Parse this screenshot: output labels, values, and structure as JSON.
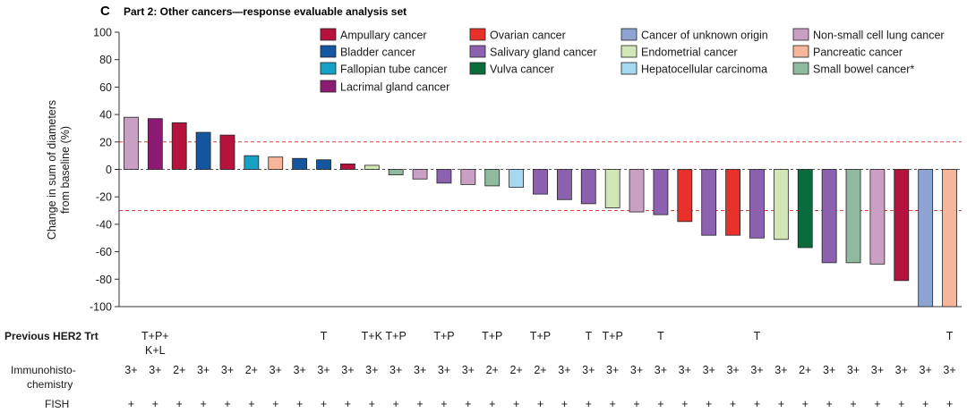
{
  "panel": {
    "letter": "C",
    "title": "Part 2: Other cancers—response evaluable analysis set"
  },
  "chart_data": {
    "type": "bar",
    "ylabel_lines": [
      "Change in sum of diameters",
      "from baseline (%)"
    ],
    "ylim": [
      -100,
      100
    ],
    "yticks": [
      100,
      80,
      60,
      40,
      20,
      0,
      -20,
      -40,
      -60,
      -80,
      -100
    ],
    "reference_lines": [
      20,
      -30
    ],
    "legend_position": "top-right",
    "cancers": [
      {
        "name": "Ampullary cancer",
        "color": "#b5123d"
      },
      {
        "name": "Ovarian cancer",
        "color": "#e8312a"
      },
      {
        "name": "Cancer of unknown origin",
        "color": "#8ea4d2"
      },
      {
        "name": "Non-small cell lung cancer",
        "color": "#c9a0c3"
      },
      {
        "name": "Bladder cancer",
        "color": "#1456a0"
      },
      {
        "name": "Salivary gland cancer",
        "color": "#8c62b0"
      },
      {
        "name": "Endometrial cancer",
        "color": "#d3e6b5"
      },
      {
        "name": "Pancreatic cancer",
        "color": "#f7b59a"
      },
      {
        "name": "Fallopian tube cancer",
        "color": "#16a0c5"
      },
      {
        "name": "Vulva cancer",
        "color": "#0a6b3c"
      },
      {
        "name": "Hepatocellular carcinoma",
        "color": "#a5d9ef"
      },
      {
        "name": "Small bowel cancer*",
        "color": "#8fba9f"
      },
      {
        "name": "Lacrimal gland cancer",
        "color": "#8c1a73"
      }
    ],
    "bars": [
      {
        "value": 38,
        "cancer": "Non-small cell lung cancer",
        "trt": "",
        "ihc": "3+",
        "fish": "+"
      },
      {
        "value": 37,
        "cancer": "Lacrimal gland cancer",
        "trt": "T+P+\nK+L",
        "ihc": "3+",
        "fish": "+"
      },
      {
        "value": 34,
        "cancer": "Ampullary cancer",
        "trt": "",
        "ihc": "2+",
        "fish": "+"
      },
      {
        "value": 27,
        "cancer": "Bladder cancer",
        "trt": "",
        "ihc": "3+",
        "fish": "+"
      },
      {
        "value": 25,
        "cancer": "Ampullary cancer",
        "trt": "",
        "ihc": "3+",
        "fish": "+"
      },
      {
        "value": 10,
        "cancer": "Fallopian tube cancer",
        "trt": "",
        "ihc": "2+",
        "fish": "+"
      },
      {
        "value": 9,
        "cancer": "Pancreatic cancer",
        "trt": "",
        "ihc": "3+",
        "fish": "+"
      },
      {
        "value": 8,
        "cancer": "Bladder cancer",
        "trt": "",
        "ihc": "3+",
        "fish": "+"
      },
      {
        "value": 7,
        "cancer": "Bladder cancer",
        "trt": "T",
        "ihc": "3+",
        "fish": "+"
      },
      {
        "value": 4,
        "cancer": "Ampullary cancer",
        "trt": "",
        "ihc": "3+",
        "fish": "+"
      },
      {
        "value": 3,
        "cancer": "Endometrial cancer",
        "trt": "T+K",
        "ihc": "3+",
        "fish": "+"
      },
      {
        "value": -4,
        "cancer": "Small bowel cancer*",
        "trt": "T+P",
        "ihc": "3+",
        "fish": "+"
      },
      {
        "value": -7,
        "cancer": "Non-small cell lung cancer",
        "trt": "",
        "ihc": "3+",
        "fish": "+"
      },
      {
        "value": -10,
        "cancer": "Salivary gland cancer",
        "trt": "T+P",
        "ihc": "3+",
        "fish": "+"
      },
      {
        "value": -11,
        "cancer": "Non-small cell lung cancer",
        "trt": "",
        "ihc": "3+",
        "fish": "+"
      },
      {
        "value": -12,
        "cancer": "Small bowel cancer*",
        "trt": "T+P",
        "ihc": "2+",
        "fish": "+"
      },
      {
        "value": -13,
        "cancer": "Hepatocellular carcinoma",
        "trt": "",
        "ihc": "2+",
        "fish": "+"
      },
      {
        "value": -18,
        "cancer": "Salivary gland cancer",
        "trt": "T+P",
        "ihc": "2+",
        "fish": "+"
      },
      {
        "value": -22,
        "cancer": "Salivary gland cancer",
        "trt": "",
        "ihc": "3+",
        "fish": "+"
      },
      {
        "value": -25,
        "cancer": "Salivary gland cancer",
        "trt": "T",
        "ihc": "3+",
        "fish": "+"
      },
      {
        "value": -28,
        "cancer": "Endometrial cancer",
        "trt": "T+P",
        "ihc": "3+",
        "fish": "+"
      },
      {
        "value": -31,
        "cancer": "Non-small cell lung cancer",
        "trt": "",
        "ihc": "3+",
        "fish": "+"
      },
      {
        "value": -33,
        "cancer": "Salivary gland cancer",
        "trt": "T",
        "ihc": "3+",
        "fish": "+"
      },
      {
        "value": -38,
        "cancer": "Ovarian cancer",
        "trt": "",
        "ihc": "3+",
        "fish": "+"
      },
      {
        "value": -48,
        "cancer": "Salivary gland cancer",
        "trt": "",
        "ihc": "3+",
        "fish": "+"
      },
      {
        "value": -48,
        "cancer": "Ovarian cancer",
        "trt": "",
        "ihc": "3+",
        "fish": "+"
      },
      {
        "value": -50,
        "cancer": "Salivary gland cancer",
        "trt": "T",
        "ihc": "3+",
        "fish": "+"
      },
      {
        "value": -51,
        "cancer": "Endometrial cancer",
        "trt": "",
        "ihc": "3+",
        "fish": "+"
      },
      {
        "value": -57,
        "cancer": "Vulva cancer",
        "trt": "",
        "ihc": "2+",
        "fish": "+"
      },
      {
        "value": -68,
        "cancer": "Salivary gland cancer",
        "trt": "",
        "ihc": "3+",
        "fish": "+"
      },
      {
        "value": -68,
        "cancer": "Small bowel cancer*",
        "trt": "",
        "ihc": "3+",
        "fish": "+"
      },
      {
        "value": -69,
        "cancer": "Non-small cell lung cancer",
        "trt": "",
        "ihc": "3+",
        "fish": "+"
      },
      {
        "value": -81,
        "cancer": "Ampullary cancer",
        "trt": "",
        "ihc": "3+",
        "fish": "+"
      },
      {
        "value": -100,
        "cancer": "Cancer of unknown origin",
        "trt": "",
        "ihc": "3+",
        "fish": "+"
      },
      {
        "value": -100,
        "cancer": "Pancreatic cancer",
        "trt": "T",
        "ihc": "3+",
        "fish": "+"
      }
    ],
    "rows": {
      "trt_label": "Previous HER2 Trt",
      "ihc_label_lines": [
        "Immunohisto-",
        "chemistry"
      ],
      "fish_label": "FISH"
    }
  }
}
